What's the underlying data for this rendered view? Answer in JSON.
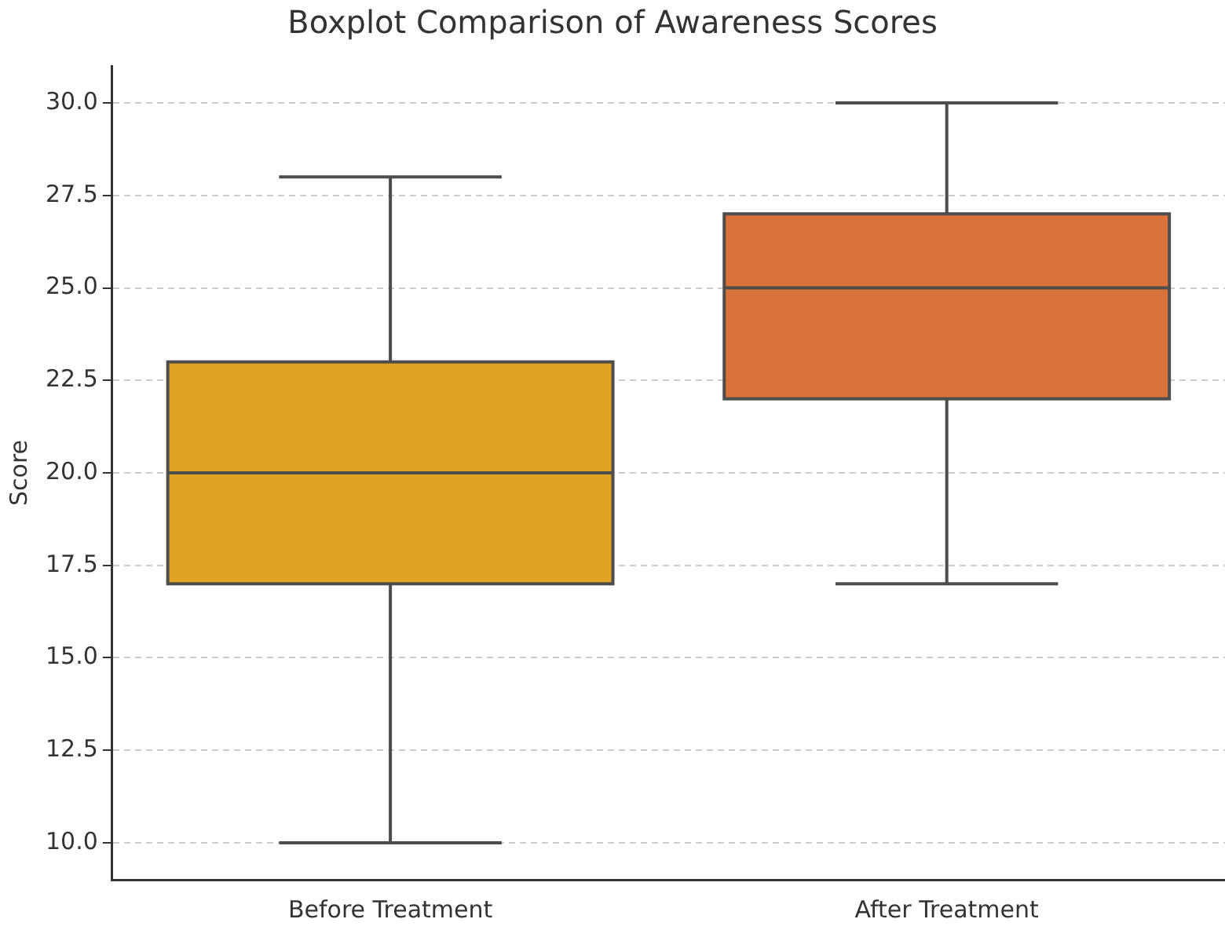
{
  "chart_data": {
    "type": "box",
    "title": "Boxplot Comparison of Awareness Scores",
    "ylabel": "Score",
    "categories": [
      "Before Treatment",
      "After Treatment"
    ],
    "boxes": [
      {
        "low": 10,
        "q1": 17,
        "median": 20,
        "q3": 23,
        "high": 28
      },
      {
        "low": 17,
        "q1": 22,
        "median": 25,
        "q3": 27,
        "high": 30
      }
    ],
    "colors": [
      "#e0a322",
      "#db723b"
    ],
    "ylim": [
      9,
      31
    ],
    "yticks": [
      {
        "value": 10,
        "label": "10.0"
      },
      {
        "value": 12.5,
        "label": "12.5"
      },
      {
        "value": 15,
        "label": "15.0"
      },
      {
        "value": 17.5,
        "label": "17.5"
      },
      {
        "value": 20,
        "label": "20.0"
      },
      {
        "value": 22.5,
        "label": "22.5"
      },
      {
        "value": 25,
        "label": "25.0"
      },
      {
        "value": 27.5,
        "label": "27.5"
      },
      {
        "value": 30,
        "label": "30.0"
      }
    ],
    "grid": "y"
  }
}
